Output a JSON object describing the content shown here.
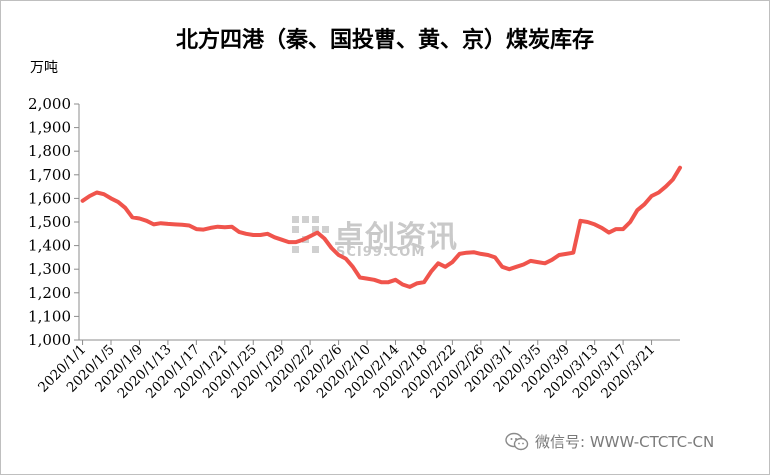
{
  "chart_data": {
    "type": "line",
    "title": "北方四港（秦、国投曹、黄、京）煤炭库存",
    "ylabel": "万吨",
    "xlabel": "",
    "ylim": [
      1000,
      2000
    ],
    "y_ticks": [
      "1,000",
      "1,100",
      "1,200",
      "1,300",
      "1,400",
      "1,500",
      "1,600",
      "1,700",
      "1,800",
      "1,900",
      "2,000"
    ],
    "x_tick_labels": [
      "2020/1/1",
      "2020/1/5",
      "2020/1/9",
      "2020/1/13",
      "2020/1/17",
      "2020/1/21",
      "2020/1/25",
      "2020/1/29",
      "2020/2/2",
      "2020/2/6",
      "2020/2/10",
      "2020/2/14",
      "2020/2/18",
      "2020/2/22",
      "2020/2/26",
      "2020/3/1",
      "2020/3/5",
      "2020/3/9",
      "2020/3/13",
      "2020/3/17",
      "2020/3/21"
    ],
    "grid": false,
    "legend": "none",
    "line_color": "#f0544c",
    "series": [
      {
        "values": [
          1590,
          1610,
          1625,
          1618,
          1600,
          1585,
          1560,
          1520,
          1515,
          1505,
          1490,
          1495,
          1492,
          1490,
          1488,
          1485,
          1470,
          1468,
          1475,
          1480,
          1478,
          1480,
          1458,
          1450,
          1445,
          1445,
          1450,
          1435,
          1425,
          1415,
          1415,
          1425,
          1440,
          1455,
          1430,
          1390,
          1360,
          1345,
          1310,
          1265,
          1260,
          1255,
          1245,
          1245,
          1255,
          1235,
          1225,
          1240,
          1245,
          1290,
          1325,
          1310,
          1330,
          1365,
          1370,
          1372,
          1365,
          1360,
          1350,
          1310,
          1300,
          1310,
          1320,
          1335,
          1330,
          1325,
          1340,
          1360,
          1365,
          1370,
          1505,
          1500,
          1490,
          1475,
          1455,
          1470,
          1470,
          1500,
          1550,
          1575,
          1610,
          1625,
          1650,
          1680,
          1730
        ]
      }
    ]
  },
  "watermark": {
    "text_cn": "卓创资讯",
    "text_en": "SCI99.COM"
  },
  "wechat_tag": {
    "text": "微信号: WWW-CTCTC-CN"
  }
}
